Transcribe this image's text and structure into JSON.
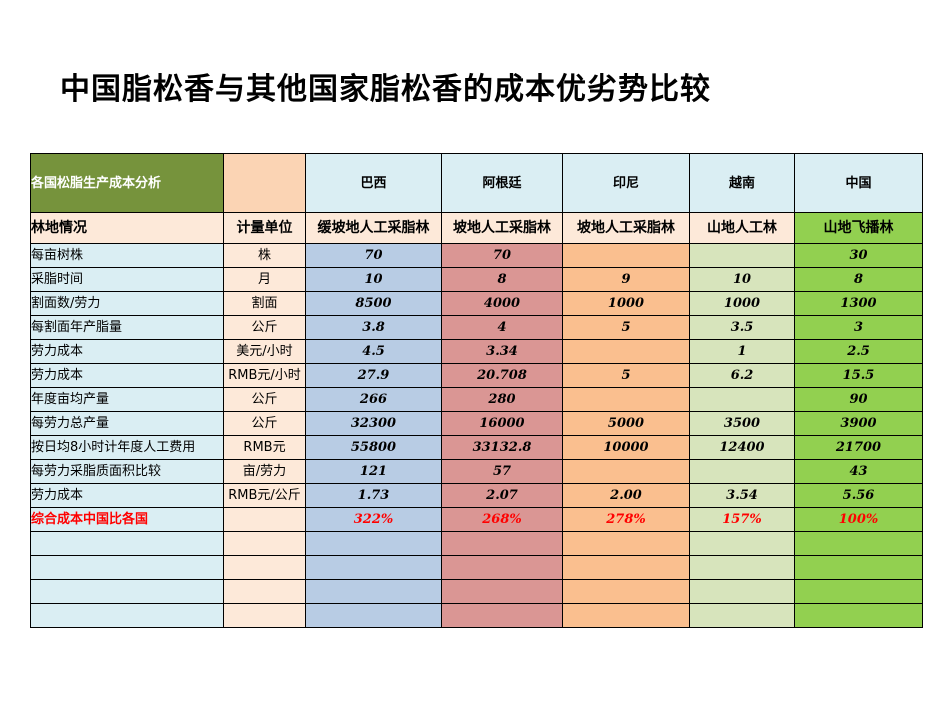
{
  "title": "中国脂松香与其他国家脂松香的成本优劣势比较",
  "table": {
    "corner": "各国松脂生产成本分析",
    "countries": [
      "巴西",
      "阿根廷",
      "印尼",
      "越南",
      "中国"
    ],
    "forest_label": "林地情况",
    "unit_label": "计量单位",
    "forest_types": [
      "缓坡地人工采脂林",
      "坡地人工采脂林",
      "坡地人工采脂林",
      "山地人工林",
      "山地飞播林"
    ],
    "rows": [
      {
        "label": "每亩树株",
        "unit": "株",
        "values": [
          "70",
          "70",
          "",
          "",
          "30"
        ]
      },
      {
        "label": "采脂时间",
        "unit": "月",
        "values": [
          "10",
          "8",
          "9",
          "10",
          "8"
        ]
      },
      {
        "label": "割面数/劳力",
        "unit": "割面",
        "values": [
          "8500",
          "4000",
          "1000",
          "1000",
          "1300"
        ]
      },
      {
        "label": "每割面年产脂量",
        "unit": "公斤",
        "values": [
          "3.8",
          "4",
          "5",
          "3.5",
          "3"
        ]
      },
      {
        "label": "劳力成本",
        "unit": "美元/小时",
        "values": [
          "4.5",
          "3.34",
          "",
          "1",
          "2.5"
        ]
      },
      {
        "label": "劳力成本",
        "unit": "RMB元/小时",
        "values": [
          "27.9",
          "20.708",
          "5",
          "6.2",
          "15.5"
        ]
      },
      {
        "label": "年度亩均产量",
        "unit": "公斤",
        "values": [
          "266",
          "280",
          "",
          "",
          "90"
        ]
      },
      {
        "label": "每劳力总产量",
        "unit": "公斤",
        "values": [
          "32300",
          "16000",
          "5000",
          "3500",
          "3900"
        ]
      },
      {
        "label": "按日均8小时计年度人工费用",
        "unit": "RMB元",
        "values": [
          "55800",
          "33132.8",
          "10000",
          "12400",
          "21700"
        ]
      },
      {
        "label": "每劳力采脂质面积比较",
        "unit": "亩/劳力",
        "values": [
          "121",
          "57",
          "",
          "",
          "43"
        ]
      },
      {
        "label": "劳力成本",
        "unit": "RMB元/公斤",
        "values": [
          "1.73",
          "2.07",
          "2.00",
          "3.54",
          "5.56"
        ]
      }
    ],
    "summary": {
      "label": "综合成本中国比各国",
      "unit": "",
      "values": [
        "322%",
        "268%",
        "278%",
        "157%",
        "100%"
      ]
    }
  }
}
